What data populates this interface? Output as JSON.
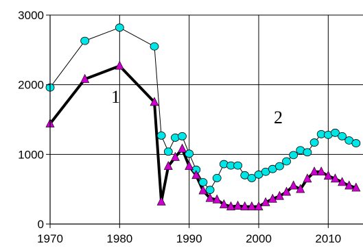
{
  "chart_data": {
    "type": "line",
    "title": "",
    "xlabel": "",
    "ylabel": "",
    "xlim": [
      1970,
      2015
    ],
    "ylim": [
      0,
      3000
    ],
    "grid": "vertical and horizontal",
    "x_ticks": [
      "1970",
      "1980",
      "1990",
      "2000",
      "2010"
    ],
    "y_ticks": [
      "0",
      "1000",
      "2000",
      "3000"
    ],
    "curve_labels": [
      "1",
      "2"
    ],
    "series": [
      {
        "marker": "circle",
        "color": "#00e5e5",
        "x": [
          1970,
          1975,
          1980,
          1985,
          1986,
          1987,
          1988,
          1989,
          1990,
          1991,
          1992,
          1993,
          1994,
          1995,
          1996,
          1997,
          1998,
          1999,
          2000,
          2001,
          2002,
          2003,
          2004,
          2005,
          2006,
          2007,
          2008,
          2009,
          2010,
          2011,
          2012,
          2013,
          2014
        ],
        "y": [
          1960,
          2630,
          2820,
          2550,
          1270,
          1040,
          1240,
          1260,
          1010,
          780,
          600,
          490,
          660,
          860,
          840,
          840,
          700,
          660,
          710,
          750,
          790,
          830,
          900,
          990,
          1060,
          1030,
          1170,
          1290,
          1280,
          1310,
          1260,
          1200,
          1160
        ]
      },
      {
        "marker": "triangle",
        "color": "#cc00cc",
        "x": [
          1970,
          1975,
          1980,
          1985,
          1986,
          1987,
          1988,
          1989,
          1990,
          1991,
          1992,
          1993,
          1994,
          1995,
          1996,
          1997,
          1998,
          1999,
          2000,
          2001,
          2002,
          2003,
          2004,
          2005,
          2006,
          2007,
          2008,
          2009,
          2010,
          2011,
          2012,
          2013,
          2014
        ],
        "y": [
          1440,
          2080,
          2270,
          1750,
          320,
          830,
          960,
          1080,
          830,
          700,
          480,
          370,
          350,
          280,
          250,
          260,
          250,
          250,
          250,
          310,
          360,
          400,
          460,
          550,
          500,
          650,
          750,
          750,
          690,
          650,
          600,
          550,
          520
        ]
      }
    ]
  },
  "colors": {
    "axis": "#000000",
    "grid": "#000000"
  }
}
